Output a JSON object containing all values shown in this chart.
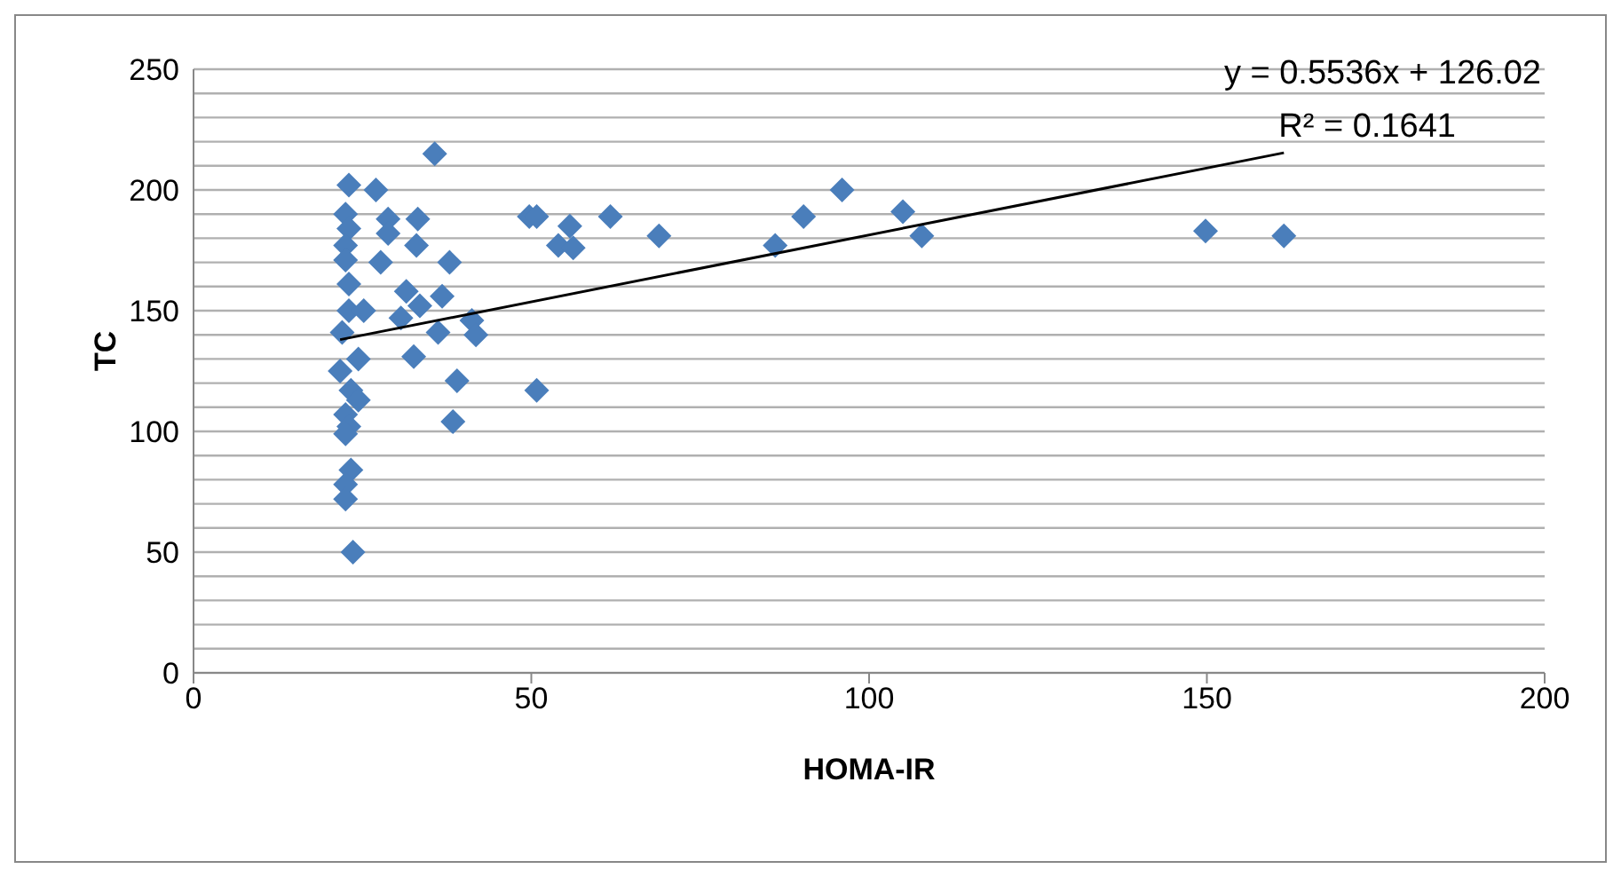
{
  "chart_data": {
    "type": "scatter",
    "xlabel": "HOMA-IR",
    "ylabel": "TC",
    "annotations": [
      "y = 0.5536x + 126.02",
      "R² = 0.1641"
    ],
    "xlim": [
      0,
      200
    ],
    "xticks": [
      0,
      50,
      100,
      150,
      200
    ],
    "ylim": [
      0,
      250
    ],
    "yticks": [
      0,
      {
        "value": 10,
        "label": null
      },
      {
        "value": 20,
        "label": null
      },
      {
        "value": 30,
        "label": null
      },
      {
        "value": 40,
        "label": null
      },
      50,
      {
        "value": 60,
        "label": null
      },
      {
        "value": 70,
        "label": null
      },
      {
        "value": 80,
        "label": null
      },
      {
        "value": 90,
        "label": null
      },
      100,
      {
        "value": 110,
        "label": null
      },
      {
        "value": 120,
        "label": null
      },
      {
        "value": 130,
        "label": null
      },
      {
        "value": 140,
        "label": null
      },
      150,
      {
        "value": 160,
        "label": null
      },
      {
        "value": 170,
        "label": null
      },
      {
        "value": 180,
        "label": null
      },
      {
        "value": 190,
        "label": null
      },
      200,
      {
        "value": 210,
        "label": null
      },
      {
        "value": 220,
        "label": null
      },
      {
        "value": 230,
        "label": null
      },
      {
        "value": 240,
        "label": null
      },
      250
    ],
    "grid": "y",
    "legend": false,
    "marker": "diamond",
    "series": [
      {
        "color": "#4a7ebb",
        "x": [
          35.7,
          23,
          27,
          22.5,
          28.8,
          33.2,
          23,
          28.8,
          22.5,
          33,
          22.5,
          27.7,
          37.9,
          23,
          31.5,
          36.8,
          23,
          25.2,
          33.5,
          30.7,
          41.2,
          41.8,
          36.2,
          22,
          32.6,
          21.7,
          24.4,
          39,
          23.3,
          24.4,
          22.5,
          23,
          22.5,
          38.4,
          50.8,
          23.3,
          22.5,
          22.5,
          23.6,
          49.7,
          50.8,
          55.7,
          54,
          56.2,
          61.7,
          68.9,
          86.1,
          90.3,
          96,
          105,
          107.8,
          149.8,
          161.4
        ],
        "values": [
          215,
          202,
          200,
          190,
          188,
          188,
          184,
          182,
          177,
          177,
          171,
          170,
          170,
          161,
          158,
          156,
          150,
          150,
          152,
          147,
          146,
          140,
          141,
          141,
          131,
          125,
          130,
          121,
          117,
          113,
          107,
          102,
          99,
          104,
          117,
          84,
          78,
          72,
          50,
          189,
          189,
          185,
          177,
          176,
          189,
          181,
          177,
          189,
          200,
          191,
          181,
          183,
          181
        ]
      },
      {
        "type": "line",
        "color": "#000000",
        "marker": "none",
        "x": [
          21.7,
          161.4
        ],
        "values": [
          138.0,
          215.4
        ]
      }
    ]
  }
}
